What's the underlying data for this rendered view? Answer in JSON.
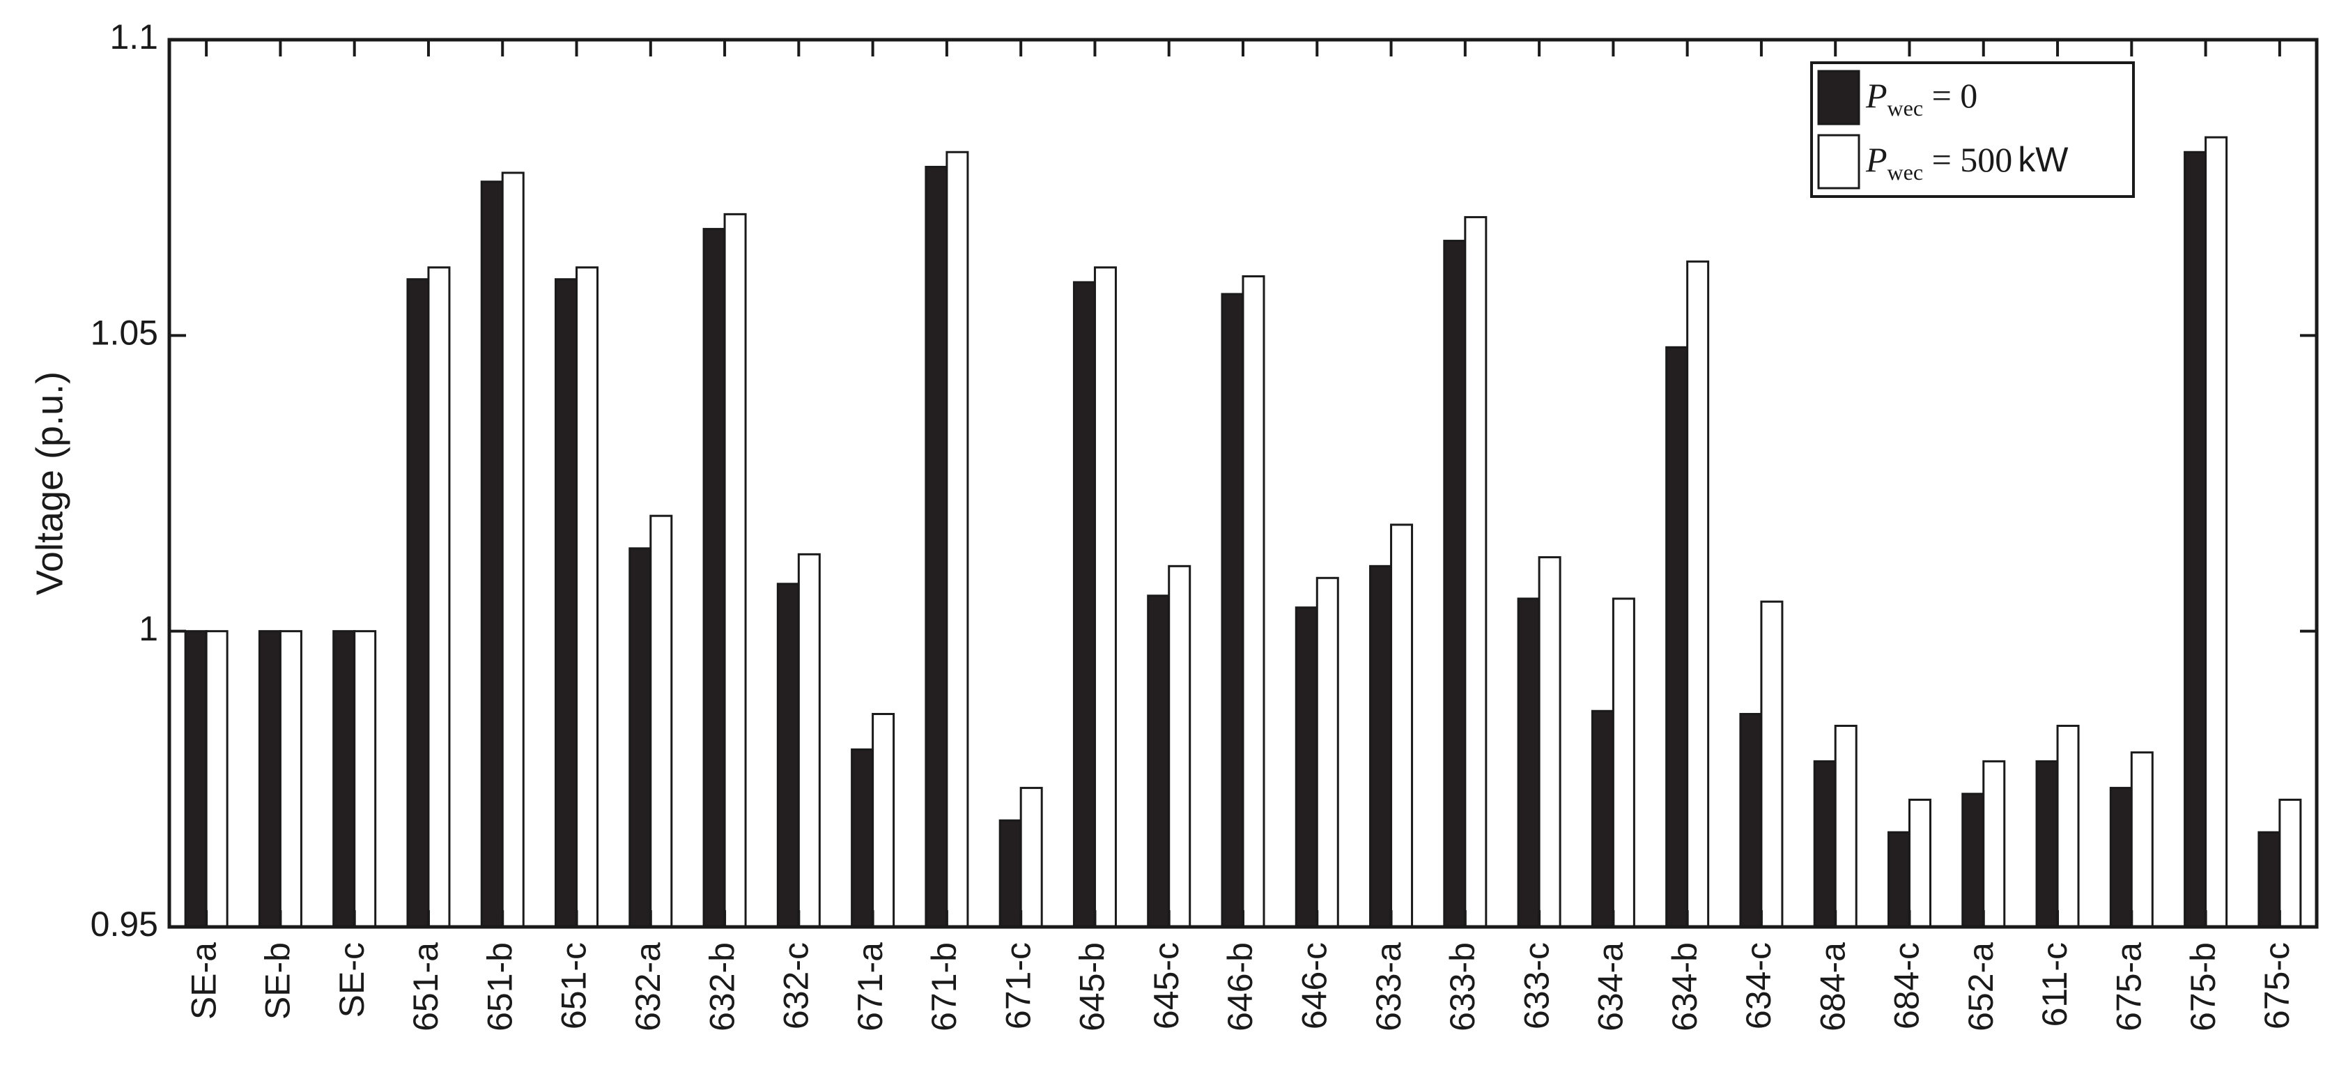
{
  "chart_data": {
    "type": "bar",
    "title": "",
    "xlabel": "",
    "ylabel": "Voltage (p.u.)",
    "ylim": [
      0.95,
      1.1
    ],
    "yticks": [
      0.95,
      1,
      1.05,
      1.1
    ],
    "ytick_labels": [
      "0.95",
      "1",
      "1.05",
      "1.1"
    ],
    "grid": false,
    "legend_position": "top-right",
    "categories": [
      "SE-a",
      "SE-b",
      "SE-c",
      "651-a",
      "651-b",
      "651-c",
      "632-a",
      "632-b",
      "632-c",
      "671-a",
      "671-b",
      "671-c",
      "645-b",
      "645-c",
      "646-b",
      "646-c",
      "633-a",
      "633-b",
      "633-c",
      "634-a",
      "634-b",
      "634-c",
      "684-a",
      "684-c",
      "652-a",
      "611-c",
      "675-a",
      "675-b",
      "675-c"
    ],
    "series": [
      {
        "name": "P_wec = 0",
        "legend": {
          "symbol": "P",
          "subscript": "wec",
          "rest": " = 0"
        },
        "color": "#231f20",
        "values": [
          1.0,
          1.0,
          1.0,
          1.0595,
          1.076,
          1.0595,
          1.014,
          1.068,
          1.008,
          0.98,
          1.0785,
          0.968,
          1.059,
          1.006,
          1.057,
          1.004,
          1.011,
          1.066,
          1.0055,
          0.9865,
          1.048,
          0.986,
          0.978,
          0.966,
          0.9725,
          0.978,
          0.9735,
          1.081,
          0.966
        ]
      },
      {
        "name": "P_wec = 500 kW",
        "legend": {
          "symbol": "P",
          "subscript": "wec",
          "rest": " = 500",
          "unit": "kW"
        },
        "color": "#ffffff",
        "values": [
          1.0,
          1.0,
          1.0,
          1.0615,
          1.0775,
          1.0615,
          1.0195,
          1.0705,
          1.013,
          0.986,
          1.081,
          0.9735,
          1.0615,
          1.011,
          1.06,
          1.009,
          1.018,
          1.07,
          1.0125,
          1.0055,
          1.0625,
          1.005,
          0.984,
          0.9715,
          0.978,
          0.984,
          0.9795,
          1.0835,
          0.9715
        ]
      }
    ]
  }
}
